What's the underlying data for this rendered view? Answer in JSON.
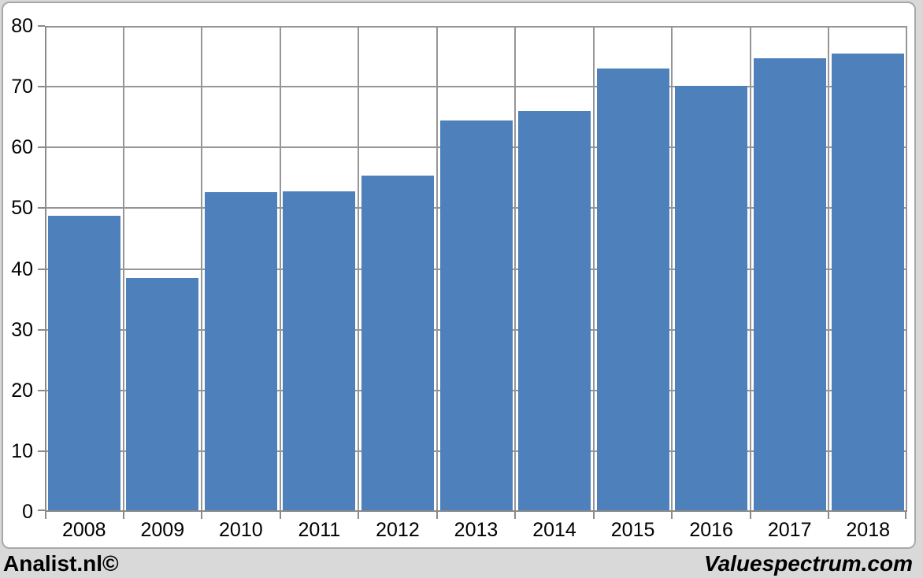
{
  "chart_data": {
    "type": "bar",
    "title": "",
    "xlabel": "",
    "ylabel": "",
    "categories": [
      "2008",
      "2009",
      "2010",
      "2011",
      "2012",
      "2013",
      "2014",
      "2015",
      "2016",
      "2017",
      "2018"
    ],
    "values": [
      48.8,
      38.5,
      52.7,
      52.8,
      55.4,
      64.4,
      66.0,
      73.0,
      70.2,
      74.7,
      75.5
    ],
    "ylim": [
      0,
      80
    ],
    "ytick_step": 10,
    "ytick_labels": [
      "0",
      "10",
      "20",
      "30",
      "40",
      "50",
      "60",
      "70",
      "80"
    ],
    "grid": true,
    "legend_position": "none",
    "bar_color": "#4E80BC"
  },
  "footer": {
    "left": "Analist.nl©",
    "right": "Valuespectrum.com"
  },
  "colors": {
    "bar": "#4E80BC",
    "page_background": "#D9D9D9",
    "plot_background": "#FFFFFF",
    "gridline": "#969696",
    "axis": "#8A8A8A",
    "frame_border": "#A8A8A8",
    "label_text": "#000000"
  }
}
